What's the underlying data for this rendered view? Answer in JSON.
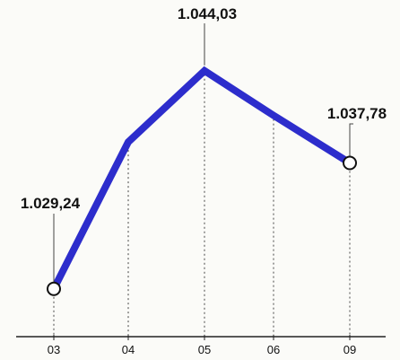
{
  "chart_data": {
    "type": "line",
    "categories": [
      "03",
      "04",
      "05",
      "06",
      "09"
    ],
    "values": [
      1029.24,
      1039.2,
      1044.03,
      1041.0,
      1037.78
    ],
    "data_labels": [
      {
        "index": 0,
        "text": "1.029,24"
      },
      {
        "index": 2,
        "text": "1.044,03"
      },
      {
        "index": 4,
        "text": "1.037,78"
      }
    ],
    "title": "",
    "xlabel": "",
    "ylabel": "",
    "ylim": [
      1026,
      1047
    ],
    "grid": "vertical dotted",
    "colors": {
      "line": "#2d2dcc",
      "marker_fill": "#ffffff",
      "marker_stroke": "#111111",
      "axis": "#222222",
      "guide": "#444444"
    }
  }
}
